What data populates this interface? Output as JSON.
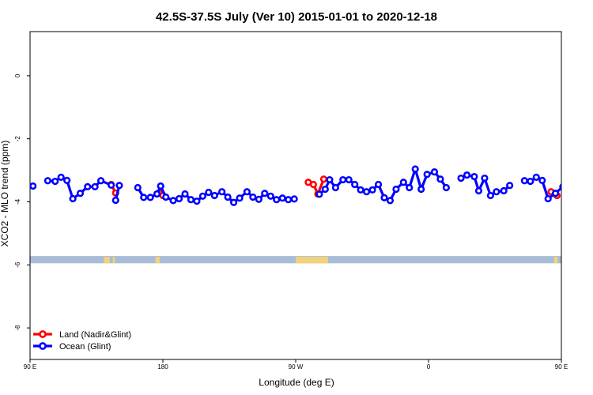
{
  "chart_data": {
    "type": "line",
    "title": "42.5S-37.5S July (Ver 10)   2015-01-01 to 2020-12-18",
    "xlabel": "Longitude (deg E)",
    "ylabel": "XCO2 - MLO trend (ppm)",
    "xlim": [
      90,
      450
    ],
    "ylim": [
      -9,
      1.4
    ],
    "x_ticks": [
      {
        "value": 90,
        "label": "90 E"
      },
      {
        "value": 180,
        "label": "180"
      },
      {
        "value": 270,
        "label": "90 W"
      },
      {
        "value": 360,
        "label": "0"
      },
      {
        "value": 450,
        "label": "90 E"
      },
      {
        "value": 540,
        "label": "180"
      }
    ],
    "y_ticks": [
      {
        "value": 0,
        "label": "0"
      },
      {
        "value": -2,
        "label": "-2"
      },
      {
        "value": -4,
        "label": "-4"
      },
      {
        "value": -6,
        "label": "-6"
      },
      {
        "value": -8,
        "label": "-8"
      }
    ],
    "legend": {
      "position": "bottom-left",
      "entries": [
        {
          "label": "Land (Nadir&Glint)",
          "color": "#ff0000"
        },
        {
          "label": "Ocean (Glint)",
          "color": "#0000ff"
        }
      ]
    },
    "series": [
      {
        "name": "Land (Nadir&Glint)",
        "color": "#ff0000",
        "segments": [
          [
            [
              145,
              -3.45
            ],
            [
              148,
              -3.72
            ]
          ],
          [
            [
              177.5,
              -3.72
            ],
            [
              180,
              -3.8
            ]
          ],
          [
            [
              278.5,
              -3.38
            ],
            [
              282,
              -3.45
            ],
            [
              285,
              -3.75
            ],
            [
              289,
              -3.28
            ]
          ],
          [
            [
              443,
              -3.68
            ],
            [
              447,
              -3.8
            ]
          ]
        ]
      },
      {
        "name": "Ocean (Glint)",
        "color": "#0000ff",
        "segments": [
          [
            [
              92,
              -3.5
            ]
          ],
          [
            [
              102,
              -3.33
            ],
            [
              107,
              -3.35
            ],
            [
              111,
              -3.22
            ],
            [
              115,
              -3.32
            ],
            [
              119,
              -3.9
            ],
            [
              124,
              -3.73
            ],
            [
              129,
              -3.52
            ],
            [
              134,
              -3.52
            ],
            [
              138,
              -3.33
            ],
            [
              145,
              -3.47
            ]
          ],
          [
            [
              148,
              -3.95
            ],
            [
              150.5,
              -3.48
            ]
          ],
          [
            [
              163,
              -3.55
            ],
            [
              167,
              -3.86
            ],
            [
              171.5,
              -3.86
            ],
            [
              176,
              -3.75
            ],
            [
              178.5,
              -3.5
            ],
            [
              182,
              -3.85
            ],
            [
              187,
              -3.96
            ],
            [
              191,
              -3.9
            ],
            [
              195,
              -3.75
            ],
            [
              199,
              -3.93
            ],
            [
              203,
              -3.98
            ],
            [
              207,
              -3.82
            ],
            [
              211,
              -3.7
            ],
            [
              215,
              -3.8
            ],
            [
              220,
              -3.68
            ],
            [
              224,
              -3.85
            ],
            [
              228,
              -4.02
            ],
            [
              232,
              -3.88
            ],
            [
              237,
              -3.68
            ],
            [
              241,
              -3.85
            ],
            [
              245,
              -3.92
            ],
            [
              249,
              -3.73
            ],
            [
              253,
              -3.82
            ],
            [
              257,
              -3.93
            ],
            [
              261,
              -3.88
            ],
            [
              265,
              -3.93
            ],
            [
              269,
              -3.91
            ]
          ],
          [
            [
              286,
              -3.76
            ],
            [
              290,
              -3.6
            ],
            [
              293,
              -3.3
            ],
            [
              297,
              -3.55
            ],
            [
              302,
              -3.3
            ],
            [
              306,
              -3.3
            ],
            [
              310,
              -3.45
            ],
            [
              314,
              -3.62
            ],
            [
              318,
              -3.68
            ],
            [
              322,
              -3.62
            ],
            [
              326,
              -3.45
            ],
            [
              330,
              -3.87
            ],
            [
              334,
              -3.96
            ],
            [
              338,
              -3.6
            ],
            [
              343,
              -3.38
            ],
            [
              347,
              -3.55
            ],
            [
              351,
              -2.96
            ],
            [
              355,
              -3.6
            ],
            [
              359,
              -3.13
            ],
            [
              364,
              -3.05
            ],
            [
              368,
              -3.28
            ],
            [
              372,
              -3.55
            ]
          ],
          [
            [
              382,
              -3.25
            ],
            [
              386,
              -3.15
            ],
            [
              391,
              -3.2
            ],
            [
              394,
              -3.65
            ],
            [
              398,
              -3.25
            ],
            [
              402,
              -3.8
            ],
            [
              406,
              -3.68
            ],
            [
              411,
              -3.65
            ],
            [
              415,
              -3.48
            ]
          ],
          [
            [
              425,
              -3.33
            ],
            [
              429,
              -3.35
            ],
            [
              433,
              -3.22
            ],
            [
              437,
              -3.32
            ],
            [
              441,
              -3.9
            ],
            [
              446,
              -3.73
            ],
            [
              451,
              -3.52
            ],
            [
              455,
              -3.52
            ],
            [
              460,
              -3.33
            ],
            [
              463,
              -3.6
            ]
          ],
          [
            [
              466,
              -3.95
            ],
            [
              470,
              -3.48
            ]
          ],
          [
            [
              480,
              -3.55
            ],
            [
              484,
              -3.86
            ],
            [
              489,
              -3.86
            ],
            [
              494,
              -3.75
            ],
            [
              498,
              -3.5
            ]
          ]
        ]
      }
    ],
    "landmask": {
      "y_range": [
        -5.72,
        -5.95
      ],
      "ocean_color": "#a8bcd8",
      "land_color": "#f2d27a",
      "land_x_ranges": [
        [
          140,
          144
        ],
        [
          146,
          147.5
        ],
        [
          175,
          178
        ],
        [
          270,
          292
        ],
        [
          445,
          447.5
        ],
        [
          456,
          461
        ]
      ]
    }
  }
}
